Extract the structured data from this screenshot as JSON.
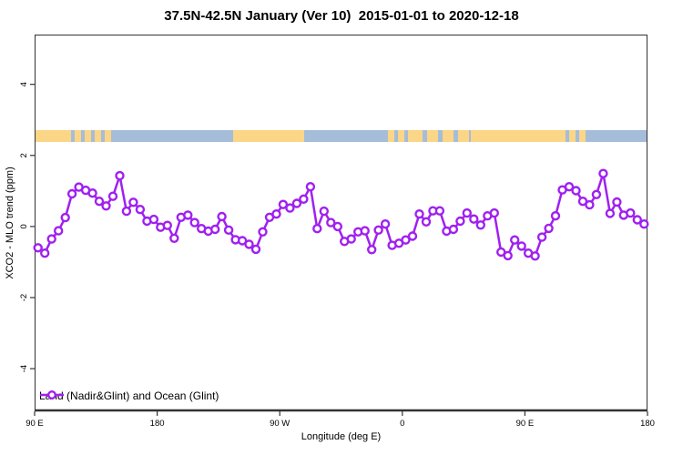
{
  "title": "37.5N-42.5N January (Ver 10)  2015-01-01 to 2020-12-18",
  "legend": {
    "label": "Land (Nadir&Glint) and Ocean (Glint)"
  },
  "colors": {
    "series": "#A020F0",
    "land": "#FBD687",
    "ocean": "#A6BDD9",
    "axis": "#333333",
    "text": "#000000"
  },
  "chart_data": {
    "type": "line",
    "title": "37.5N-42.5N January (Ver 10)  2015-01-01 to 2020-12-18",
    "xlabel": "Longitude (deg E)",
    "ylabel": "XCO2 - MLO trend (ppm)",
    "x_unit": "degrees east, unwrapped (axis repeats after 360)",
    "y_unit": "ppm",
    "xlim": [
      90,
      540
    ],
    "ylim": [
      -5.2,
      5.4
    ],
    "grid": false,
    "legend_position": "bottom-left-inside",
    "xticks": [
      {
        "value": 90,
        "label": "90 E"
      },
      {
        "value": 180,
        "label": "180"
      },
      {
        "value": 270,
        "label": "90 W"
      },
      {
        "value": 360,
        "label": "0"
      },
      {
        "value": 450,
        "label": "90 E"
      },
      {
        "value": 540,
        "label": "180"
      }
    ],
    "yticks": [
      {
        "value": -4,
        "label": "-4"
      },
      {
        "value": -2,
        "label": "-2"
      },
      {
        "value": 0,
        "label": "0"
      },
      {
        "value": 2,
        "label": "2"
      },
      {
        "value": 4,
        "label": "4"
      }
    ],
    "series": [
      {
        "name": "Land (Nadir&Glint) and Ocean (Glint)",
        "marker": "open-circle",
        "x": [
          92.5,
          97.5,
          102.5,
          107.5,
          112.5,
          117.5,
          122.5,
          127.5,
          132.5,
          137.5,
          142.5,
          147.5,
          152.5,
          157.5,
          162.5,
          167.5,
          172.5,
          177.5,
          182.5,
          187.5,
          192.5,
          197.5,
          202.5,
          207.5,
          212.5,
          217.5,
          222.5,
          227.5,
          232.5,
          237.5,
          242.5,
          247.5,
          252.5,
          257.5,
          262.5,
          267.5,
          272.5,
          277.5,
          282.5,
          287.5,
          292.5,
          297.5,
          302.5,
          307.5,
          312.5,
          317.5,
          322.5,
          327.5,
          332.5,
          337.5,
          342.5,
          347.5,
          352.5,
          357.5,
          362.5,
          367.5,
          372.5,
          377.5,
          382.5,
          387.5,
          392.5,
          397.5,
          402.5,
          407.5,
          412.5,
          417.5,
          422.5,
          427.5,
          432.5,
          437.5,
          442.5,
          447.5,
          452.5,
          457.5,
          462.5,
          467.5,
          472.5,
          477.5,
          482.5,
          487.5,
          492.5,
          497.5,
          502.5,
          507.5,
          512.5,
          517.5,
          522.5,
          527.5,
          532.5,
          537.5
        ],
        "values": [
          -0.6,
          -0.75,
          -0.35,
          -0.12,
          0.25,
          0.92,
          1.11,
          1.02,
          0.94,
          0.71,
          0.58,
          0.85,
          1.43,
          0.43,
          0.68,
          0.48,
          0.15,
          0.2,
          -0.02,
          0.03,
          -0.33,
          0.26,
          0.32,
          0.11,
          -0.06,
          -0.13,
          -0.08,
          0.28,
          -0.1,
          -0.37,
          -0.4,
          -0.5,
          -0.64,
          -0.15,
          0.26,
          0.35,
          0.62,
          0.52,
          0.65,
          0.77,
          1.12,
          -0.06,
          0.43,
          0.11,
          0.0,
          -0.42,
          -0.35,
          -0.15,
          -0.12,
          -0.65,
          -0.1,
          0.07,
          -0.53,
          -0.47,
          -0.38,
          -0.27,
          0.35,
          0.13,
          0.44,
          0.44,
          -0.13,
          -0.08,
          0.15,
          0.38,
          0.21,
          0.04,
          0.3,
          0.38,
          -0.72,
          -0.82,
          -0.38,
          -0.55,
          -0.75,
          -0.83,
          -0.3,
          -0.05,
          0.3,
          1.03,
          1.12,
          1.01,
          0.71,
          0.61,
          0.9,
          1.49,
          0.37,
          0.69,
          0.32,
          0.38,
          0.19,
          0.07
        ]
      }
    ],
    "map_band": {
      "description": "land/ocean map strip drawn across the plot",
      "value_top": 2.7,
      "value_bottom": 2.38,
      "segments": [
        {
          "from": 90,
          "to": 117,
          "type": "land"
        },
        {
          "from": 117,
          "to": 147,
          "type": "mixed"
        },
        {
          "from": 147,
          "to": 236,
          "type": "ocean"
        },
        {
          "from": 236,
          "to": 288,
          "type": "land"
        },
        {
          "from": 288,
          "to": 347,
          "type": "ocean"
        },
        {
          "from": 347,
          "to": 367,
          "type": "mixed"
        },
        {
          "from": 367,
          "to": 410,
          "type": "land_mixed"
        },
        {
          "from": 410,
          "to": 480,
          "type": "land"
        },
        {
          "from": 480,
          "to": 495,
          "type": "mixed"
        },
        {
          "from": 495,
          "to": 540,
          "type": "ocean"
        }
      ]
    }
  }
}
